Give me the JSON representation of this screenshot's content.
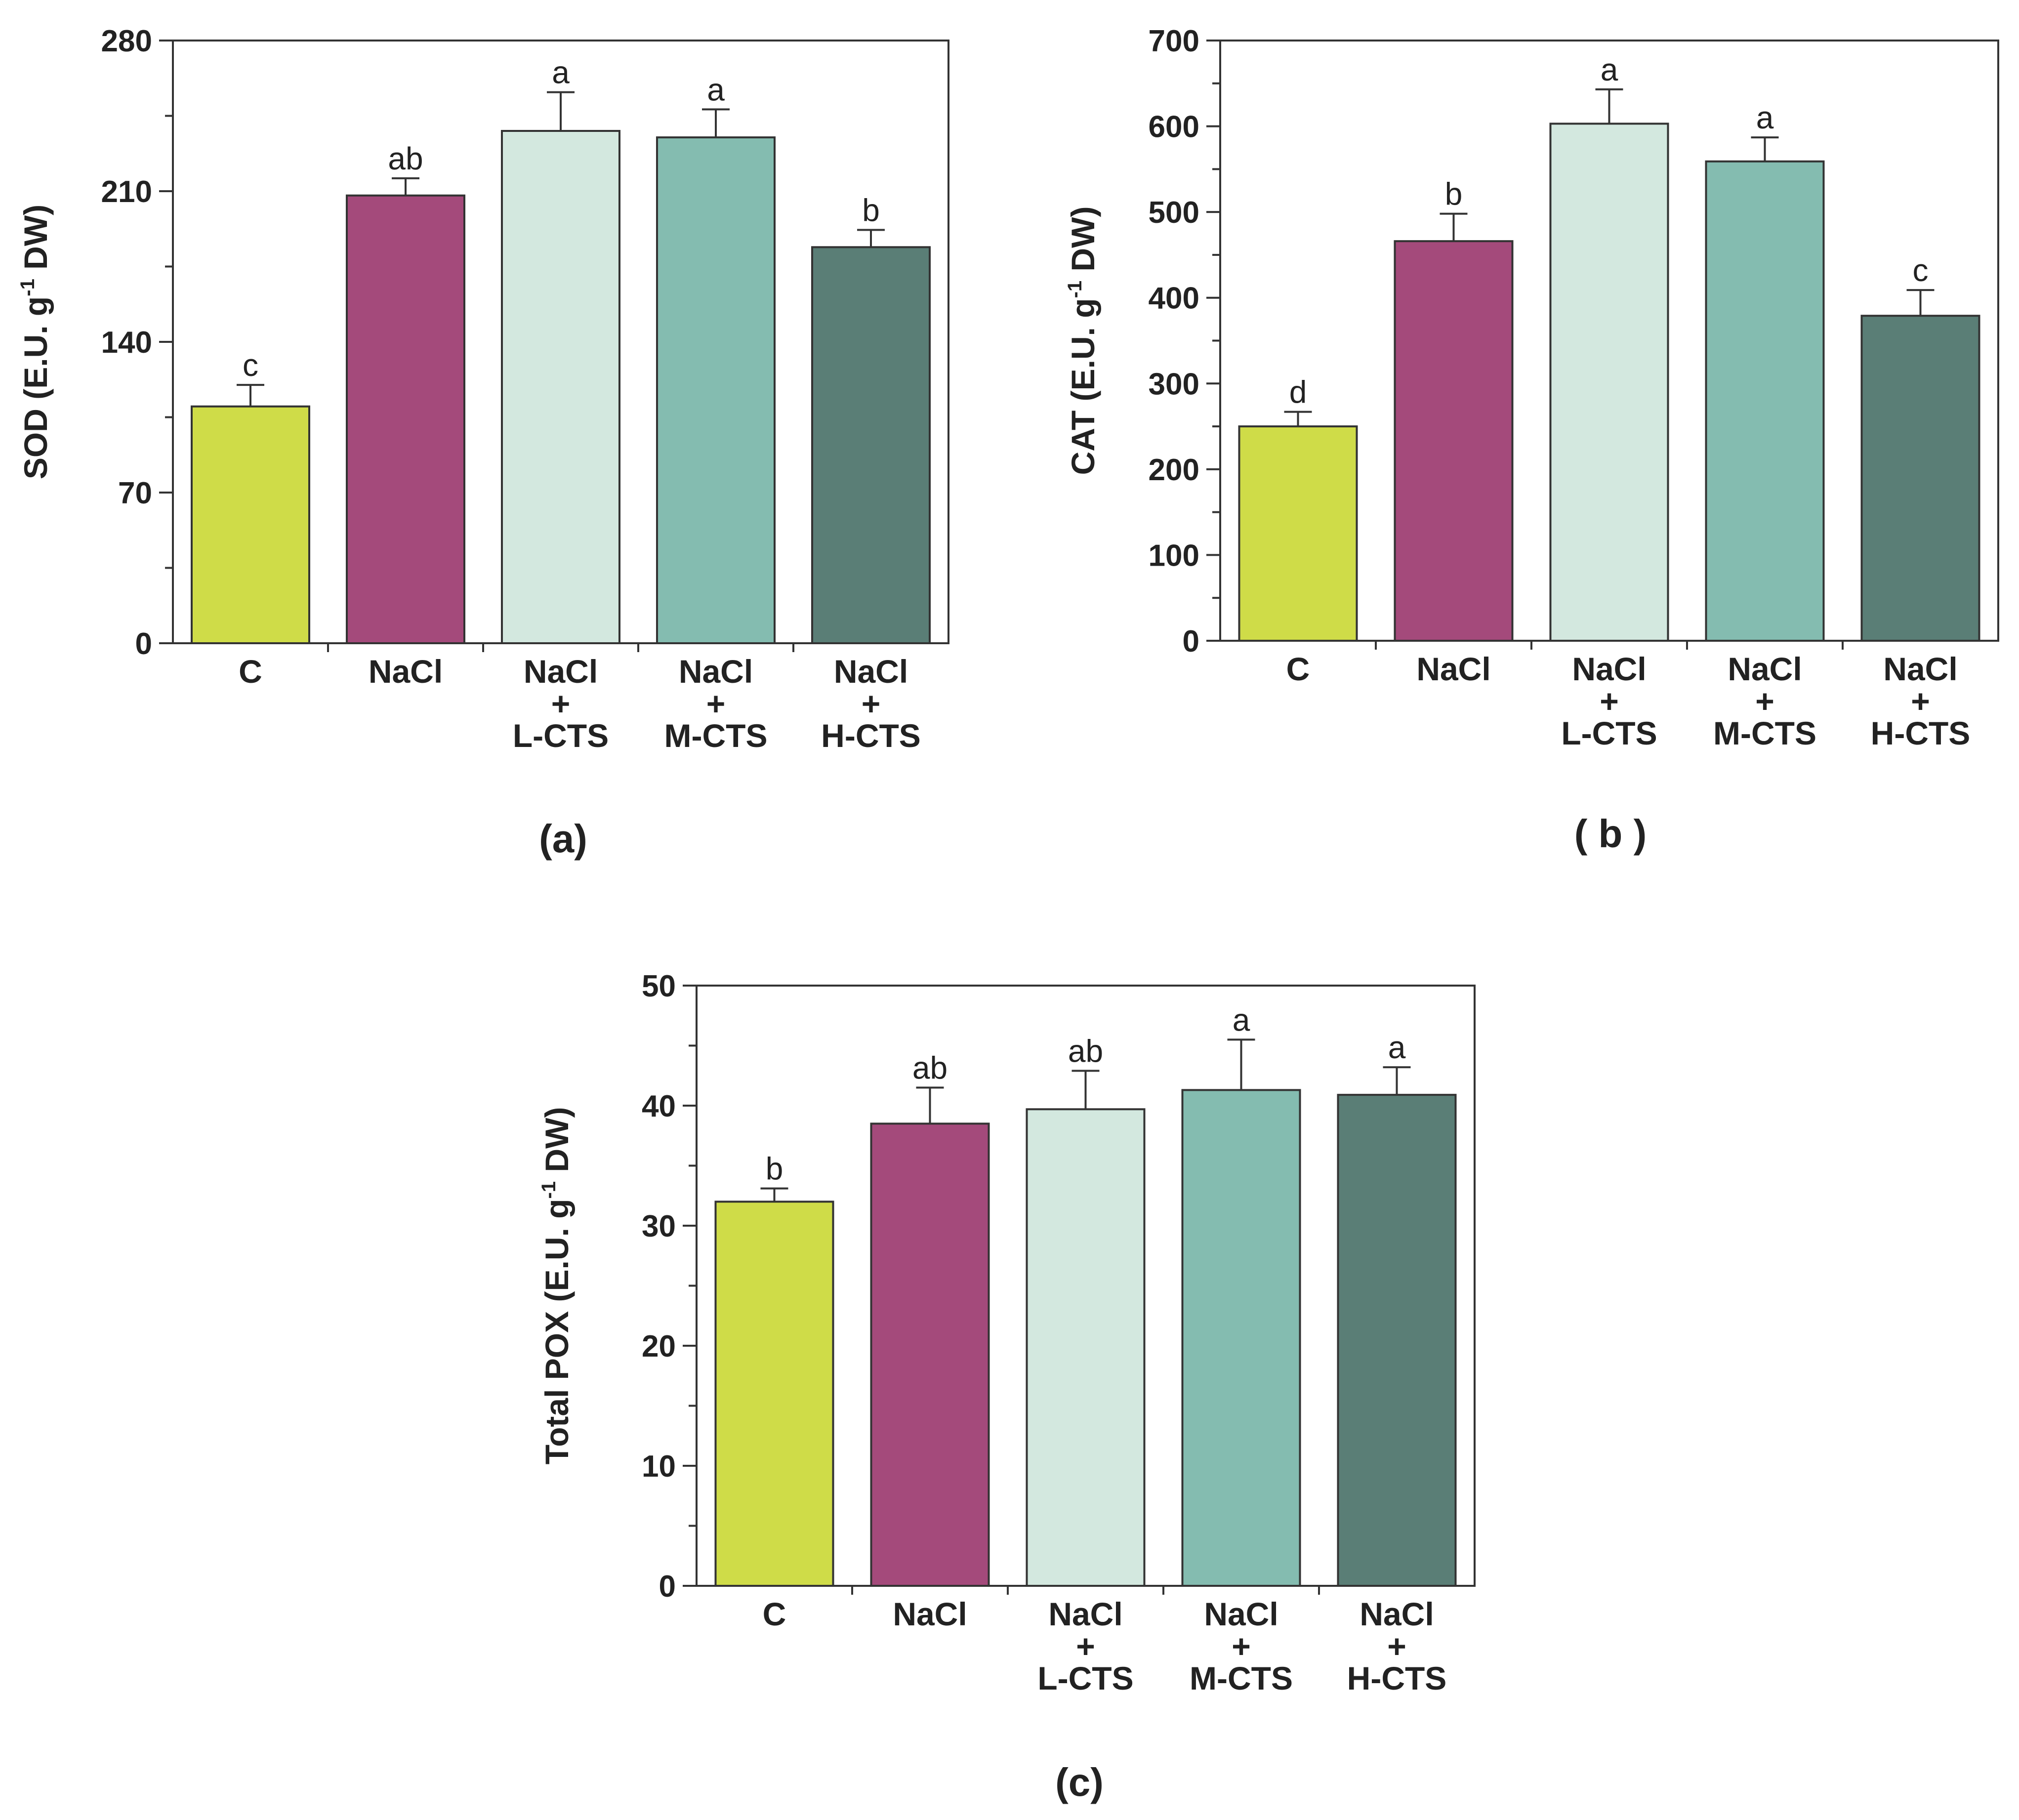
{
  "categories": [
    [
      "C"
    ],
    [
      "NaCl"
    ],
    [
      "NaCl",
      "+",
      "L-CTS"
    ],
    [
      "NaCl",
      "+",
      "M-CTS"
    ],
    [
      "NaCl",
      "+",
      "H-CTS"
    ]
  ],
  "colors": [
    "#cfdc48",
    "#a44a7b",
    "#d3e8df",
    "#84bcb0",
    "#5a7e76"
  ],
  "chart_data": [
    {
      "type": "bar",
      "panel": "(a)",
      "ylabel_main": "SOD (E.U. g",
      "ylabel_sup": "-1",
      "ylabel_end": " DW)",
      "ylim": [
        0,
        280
      ],
      "yticks": [
        0,
        70,
        140,
        210,
        280
      ],
      "values": [
        110,
        208,
        238,
        235,
        184
      ],
      "errors": [
        10,
        8,
        18,
        13,
        8
      ],
      "letters": [
        "c",
        "ab",
        "a",
        "a",
        "b"
      ]
    },
    {
      "type": "bar",
      "panel": "( b )",
      "ylabel_main": "CAT (E.U. g",
      "ylabel_sup": "-1",
      "ylabel_end": " DW)",
      "ylim": [
        0,
        700
      ],
      "yticks": [
        0,
        100,
        200,
        300,
        400,
        500,
        600,
        700
      ],
      "values": [
        250,
        466,
        603,
        559,
        379
      ],
      "errors": [
        17,
        32,
        40,
        28,
        30
      ],
      "letters": [
        "d",
        "b",
        "a",
        "a",
        "c"
      ]
    },
    {
      "type": "bar",
      "panel": "(c)",
      "ylabel_main": "Total POX (E.U. g",
      "ylabel_sup": "-1",
      "ylabel_end": " DW)",
      "ylim": [
        0,
        50
      ],
      "yticks": [
        0,
        10,
        20,
        30,
        40,
        50
      ],
      "values": [
        32,
        38.5,
        39.7,
        41.3,
        40.9
      ],
      "errors": [
        1.1,
        3,
        3.2,
        4.2,
        2.3
      ],
      "letters": [
        "b",
        "ab",
        "ab",
        "a",
        "a"
      ]
    }
  ]
}
